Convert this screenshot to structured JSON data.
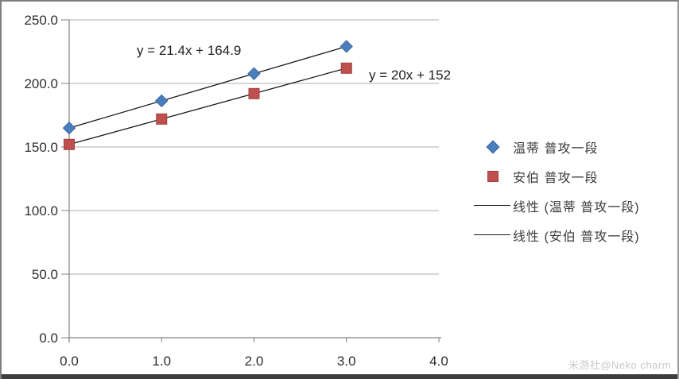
{
  "watermark": "米游社@Neko charm",
  "colors": {
    "grid": "#ACACAC",
    "axis": "#808080",
    "tick_text": "#2E2E2E",
    "trendline": "#1A1A1A",
    "watermark": "#C9C9C9",
    "bottom_bar": "#3E3E3E",
    "series_blue": "#4A7EBC",
    "series_red": "#C0504D"
  },
  "chart_data": {
    "type": "scatter",
    "title": "",
    "xlabel": "",
    "ylabel": "",
    "grid": true,
    "legend_position": "right",
    "x": [
      0,
      1,
      2,
      3
    ],
    "series": [
      {
        "name": "温蒂 普攻一段",
        "marker": "diamond",
        "color": "#4A7EBC",
        "border": "#3B66A0",
        "values": [
          164.9,
          186.3,
          207.7,
          229.1
        ]
      },
      {
        "name": "安伯 普攻一段",
        "marker": "square",
        "color": "#C0504D",
        "border": "#A03F3D",
        "values": [
          152.0,
          172.0,
          192.0,
          212.0
        ]
      }
    ],
    "trendlines": [
      {
        "series": 0,
        "equation": "y = 21.4x + 164.9",
        "slope": 21.4,
        "intercept": 164.9,
        "legend_label": "线性 (温蒂 普攻一段)"
      },
      {
        "series": 1,
        "equation": "y = 20x + 152",
        "slope": 20,
        "intercept": 152,
        "legend_label": "线性 (安伯 普攻一段)"
      }
    ],
    "x_axis": {
      "min": 0,
      "max": 4,
      "step": 1,
      "tick_labels": [
        "0.0",
        "1.0",
        "2.0",
        "3.0",
        "4.0"
      ]
    },
    "y_axis": {
      "min": 0,
      "max": 250,
      "step": 50,
      "tick_labels": [
        "0.0",
        "50.0",
        "100.0",
        "150.0",
        "200.0",
        "250.0"
      ]
    }
  }
}
